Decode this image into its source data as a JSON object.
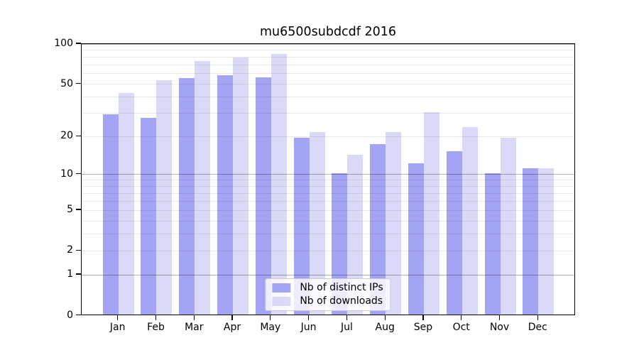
{
  "chart_data": {
    "type": "bar",
    "title": "mu6500subdcdf 2016",
    "categories": [
      "Jan 2016",
      "Feb 2016",
      "Mar 2016",
      "Apr 2016",
      "May 2016",
      "Jun 2016",
      "Jul 2016",
      "Aug 2016",
      "Sep 2016",
      "Oct 2016",
      "Nov 2016",
      "Dec 2016"
    ],
    "series": [
      {
        "name": "Nb of distinct IPs",
        "color": "#a4a4f4",
        "values": [
          29,
          27,
          54,
          57,
          55,
          19,
          10,
          17,
          12,
          15,
          10,
          11
        ]
      },
      {
        "name": "Nb of downloads",
        "color": "#dadaf8",
        "values": [
          42,
          52,
          73,
          77,
          82,
          21,
          14,
          21,
          30,
          23,
          19,
          11
        ]
      }
    ],
    "xlabel": "",
    "ylabel": "",
    "yscale": "log(1+y)",
    "ylim": [
      0,
      100
    ],
    "y_ticks": [
      0,
      1,
      2,
      5,
      10,
      20,
      50,
      100
    ],
    "y_major_grid": [
      1,
      10,
      100
    ],
    "y_minor_grid": [
      2,
      3,
      4,
      5,
      6,
      7,
      8,
      9,
      20,
      30,
      40,
      50,
      60,
      70,
      80,
      90
    ],
    "grid": true,
    "legend_position": "lower center",
    "axis_color": "#000000",
    "background_color": "#ffffff"
  }
}
